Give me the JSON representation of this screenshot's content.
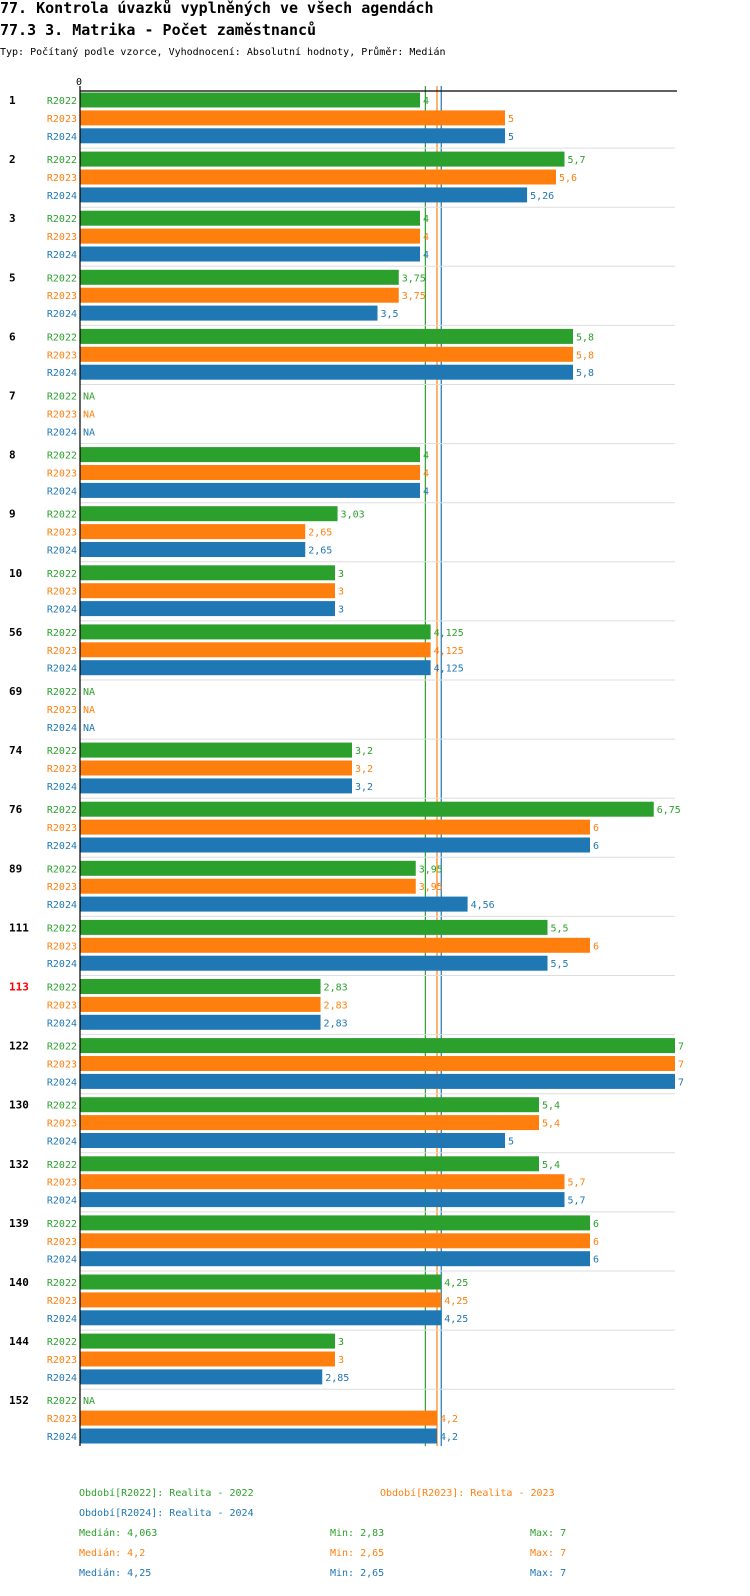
{
  "title": "77. Kontrola úvazků vyplněných ve všech agendách",
  "subtitle": "77.3 3. Matrika - Počet zaměstnanců",
  "type_line": "Typ: Počítaný podle vzorce, Vyhodnocení: Absolutní hodnoty, Průměr: Medián",
  "colors": {
    "R2022": "#2ca02c",
    "R2023": "#ff7f0e",
    "R2024": "#1f77b4",
    "highlight": "#ff0000",
    "axis": "#000000"
  },
  "chart_data": {
    "type": "bar",
    "orientation": "horizontal",
    "xlim": [
      0,
      7
    ],
    "axis_tick": "0",
    "series_names": [
      "R2022",
      "R2023",
      "R2024"
    ],
    "groups": [
      {
        "label": "1",
        "highlight": false,
        "values": [
          4,
          5,
          5
        ],
        "labels": [
          "4",
          "5",
          "5"
        ]
      },
      {
        "label": "2",
        "highlight": false,
        "values": [
          5.7,
          5.6,
          5.26
        ],
        "labels": [
          "5,7",
          "5,6",
          "5,26"
        ]
      },
      {
        "label": "3",
        "highlight": false,
        "values": [
          4,
          4,
          4
        ],
        "labels": [
          "4",
          "4",
          "4"
        ]
      },
      {
        "label": "5",
        "highlight": false,
        "values": [
          3.75,
          3.75,
          3.5
        ],
        "labels": [
          "3,75",
          "3,75",
          "3,5"
        ]
      },
      {
        "label": "6",
        "highlight": false,
        "values": [
          5.8,
          5.8,
          5.8
        ],
        "labels": [
          "5,8",
          "5,8",
          "5,8"
        ]
      },
      {
        "label": "7",
        "highlight": false,
        "values": [
          null,
          null,
          null
        ],
        "labels": [
          "NA",
          "NA",
          "NA"
        ]
      },
      {
        "label": "8",
        "highlight": false,
        "values": [
          4,
          4,
          4
        ],
        "labels": [
          "4",
          "4",
          "4"
        ]
      },
      {
        "label": "9",
        "highlight": false,
        "values": [
          3.03,
          2.65,
          2.65
        ],
        "labels": [
          "3,03",
          "2,65",
          "2,65"
        ]
      },
      {
        "label": "10",
        "highlight": false,
        "values": [
          3,
          3,
          3
        ],
        "labels": [
          "3",
          "3",
          "3"
        ]
      },
      {
        "label": "56",
        "highlight": false,
        "values": [
          4.125,
          4.125,
          4.125
        ],
        "labels": [
          "4,125",
          "4,125",
          "4,125"
        ]
      },
      {
        "label": "69",
        "highlight": false,
        "values": [
          null,
          null,
          null
        ],
        "labels": [
          "NA",
          "NA",
          "NA"
        ]
      },
      {
        "label": "74",
        "highlight": false,
        "values": [
          3.2,
          3.2,
          3.2
        ],
        "labels": [
          "3,2",
          "3,2",
          "3,2"
        ]
      },
      {
        "label": "76",
        "highlight": false,
        "values": [
          6.75,
          6,
          6
        ],
        "labels": [
          "6,75",
          "6",
          "6"
        ]
      },
      {
        "label": "89",
        "highlight": false,
        "values": [
          3.95,
          3.95,
          4.56
        ],
        "labels": [
          "3,95",
          "3,95",
          "4,56"
        ]
      },
      {
        "label": "111",
        "highlight": false,
        "values": [
          5.5,
          6,
          5.5
        ],
        "labels": [
          "5,5",
          "6",
          "5,5"
        ]
      },
      {
        "label": "113",
        "highlight": true,
        "values": [
          2.83,
          2.83,
          2.83
        ],
        "labels": [
          "2,83",
          "2,83",
          "2,83"
        ]
      },
      {
        "label": "122",
        "highlight": false,
        "values": [
          7,
          7,
          7
        ],
        "labels": [
          "7",
          "7",
          "7"
        ]
      },
      {
        "label": "130",
        "highlight": false,
        "values": [
          5.4,
          5.4,
          5
        ],
        "labels": [
          "5,4",
          "5,4",
          "5"
        ]
      },
      {
        "label": "132",
        "highlight": false,
        "values": [
          5.4,
          5.7,
          5.7
        ],
        "labels": [
          "5,4",
          "5,7",
          "5,7"
        ]
      },
      {
        "label": "139",
        "highlight": false,
        "values": [
          6,
          6,
          6
        ],
        "labels": [
          "6",
          "6",
          "6"
        ]
      },
      {
        "label": "140",
        "highlight": false,
        "values": [
          4.25,
          4.25,
          4.25
        ],
        "labels": [
          "4,25",
          "4,25",
          "4,25"
        ]
      },
      {
        "label": "144",
        "highlight": false,
        "values": [
          3,
          3,
          2.85
        ],
        "labels": [
          "3",
          "3",
          "2,85"
        ]
      },
      {
        "label": "152",
        "highlight": false,
        "values": [
          null,
          4.2,
          4.2
        ],
        "labels": [
          "NA",
          "4,2",
          "4,2"
        ]
      }
    ],
    "medians": [
      4.063,
      4.2,
      4.25
    ]
  },
  "legend": {
    "periods": [
      "Období[R2022]: Realita - 2022",
      "Období[R2023]: Realita - 2023",
      "Období[R2024]: Realita - 2024"
    ],
    "stats": [
      {
        "median": "Medián: 4,063",
        "min": "Min: 2,83",
        "max": "Max: 7"
      },
      {
        "median": "Medián: 4,2",
        "min": "Min: 2,65",
        "max": "Max: 7"
      },
      {
        "median": "Medián: 4,25",
        "min": "Min: 2,65",
        "max": "Max: 7"
      }
    ]
  }
}
